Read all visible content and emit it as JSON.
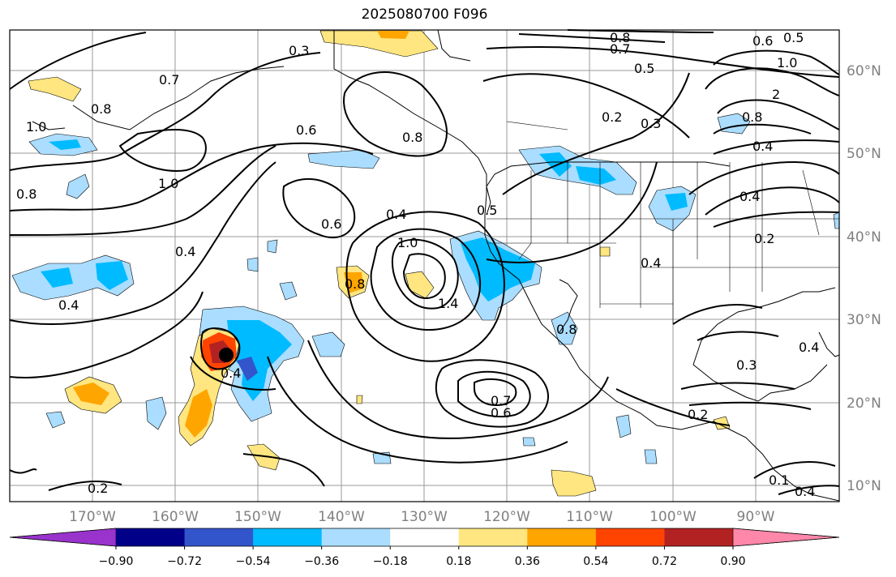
{
  "title": "2025080700 F096",
  "lat_labels": [
    "60°N",
    "50°N",
    "40°N",
    "30°N",
    "20°N",
    "10°N"
  ],
  "lon_labels": [
    "170°W",
    "160°W",
    "150°W",
    "140°W",
    "130°W",
    "120°W",
    "110°W",
    "100°W",
    "90°W"
  ],
  "colorbar": {
    "colors": [
      "#9933cc",
      "#000088",
      "#3355cc",
      "#00bbff",
      "#aaddff",
      "#ffffff",
      "#ffe680",
      "#ffa500",
      "#ff4400",
      "#b22222",
      "#ff88aa"
    ],
    "tick_labels": [
      "−0.90",
      "−0.72",
      "−0.54",
      "−0.36",
      "−0.18",
      "0.18",
      "0.36",
      "0.54",
      "0.72",
      "0.90"
    ]
  },
  "contour_labels": [
    "0.3",
    "0.8",
    "0.7",
    "0.6",
    "0.5",
    "1.0",
    "0.5",
    "2",
    "0.2",
    "0.3",
    "0.8",
    "0.4",
    "0.8",
    "1.0",
    "0.6",
    "0.8",
    "0.7",
    "1.0",
    "0.8",
    "0.4",
    "0.6",
    "0.4",
    "1.0",
    "0.5",
    "1.4",
    "0.8",
    "0.4",
    "0.4",
    "0.2",
    "0.4",
    "0.3",
    "0.4",
    "0.2",
    "0.7",
    "0.6",
    "0.2",
    "0.1",
    "0.4",
    "0.4",
    "0.8"
  ]
}
